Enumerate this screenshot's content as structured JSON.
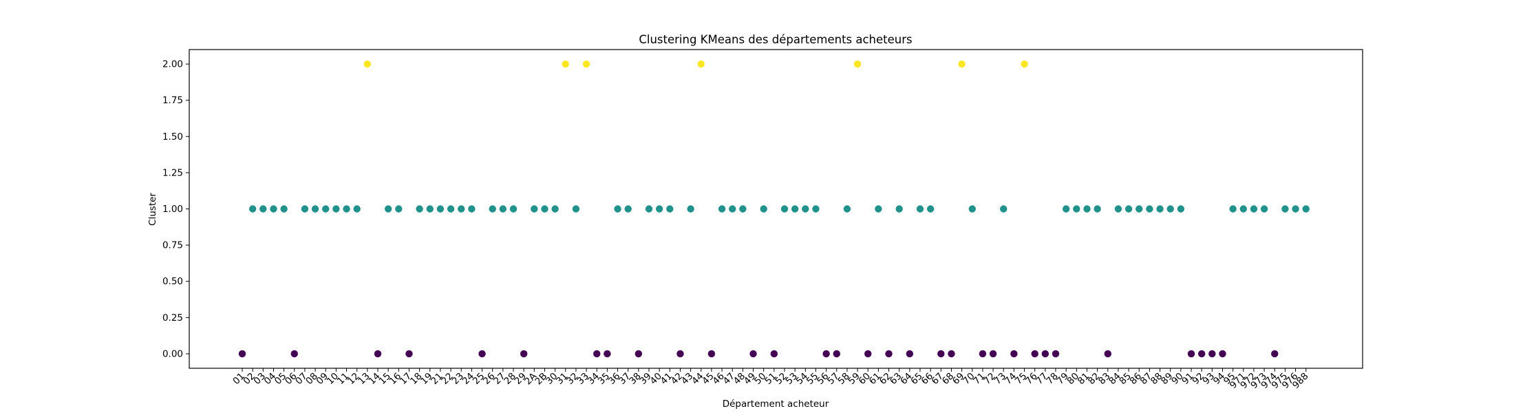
{
  "chart_data": {
    "type": "scatter",
    "title": "Clustering KMeans des départements acheteurs",
    "xlabel": "Département acheteur",
    "ylabel": "Cluster",
    "ylim": [
      -0.1,
      2.1
    ],
    "yticks": [
      "0.00",
      "0.25",
      "0.50",
      "0.75",
      "1.00",
      "1.25",
      "1.50",
      "1.75",
      "2.00"
    ],
    "grid": false,
    "legend": "none",
    "cluster_colors": {
      "0": "#440154",
      "1": "#21918c",
      "2": "#fde725"
    },
    "categories": [
      "01",
      "02",
      "03",
      "04",
      "05",
      "06",
      "07",
      "08",
      "09",
      "10",
      "11",
      "12",
      "13",
      "14",
      "15",
      "16",
      "17",
      "18",
      "19",
      "21",
      "22",
      "23",
      "24",
      "25",
      "26",
      "27",
      "28",
      "29",
      "2A",
      "2B",
      "30",
      "31",
      "32",
      "33",
      "34",
      "35",
      "36",
      "37",
      "38",
      "39",
      "40",
      "41",
      "42",
      "43",
      "44",
      "45",
      "46",
      "47",
      "48",
      "49",
      "50",
      "51",
      "52",
      "53",
      "54",
      "55",
      "56",
      "57",
      "58",
      "59",
      "60",
      "61",
      "62",
      "63",
      "64",
      "65",
      "66",
      "67",
      "68",
      "69",
      "70",
      "71",
      "72",
      "73",
      "74",
      "75",
      "76",
      "77",
      "78",
      "79",
      "80",
      "81",
      "82",
      "83",
      "84",
      "85",
      "86",
      "87",
      "88",
      "89",
      "90",
      "91",
      "92",
      "93",
      "94",
      "95",
      "971",
      "972",
      "973",
      "974",
      "975",
      "976",
      "988"
    ],
    "values": [
      0,
      1,
      1,
      1,
      1,
      0,
      1,
      1,
      1,
      1,
      1,
      1,
      2,
      0,
      1,
      1,
      0,
      1,
      1,
      1,
      1,
      1,
      1,
      0,
      1,
      1,
      1,
      0,
      1,
      1,
      1,
      2,
      1,
      2,
      0,
      0,
      1,
      1,
      0,
      1,
      1,
      1,
      0,
      1,
      2,
      0,
      1,
      1,
      1,
      0,
      1,
      0,
      1,
      1,
      1,
      1,
      0,
      0,
      1,
      2,
      0,
      1,
      0,
      1,
      0,
      1,
      1,
      0,
      0,
      2,
      1,
      0,
      0,
      1,
      0,
      2,
      0,
      0,
      0,
      1,
      1,
      1,
      1,
      0,
      1,
      1,
      1,
      1,
      1,
      1,
      1,
      0,
      0,
      0,
      0,
      1,
      1,
      1,
      1,
      0,
      1,
      1,
      1
    ]
  }
}
